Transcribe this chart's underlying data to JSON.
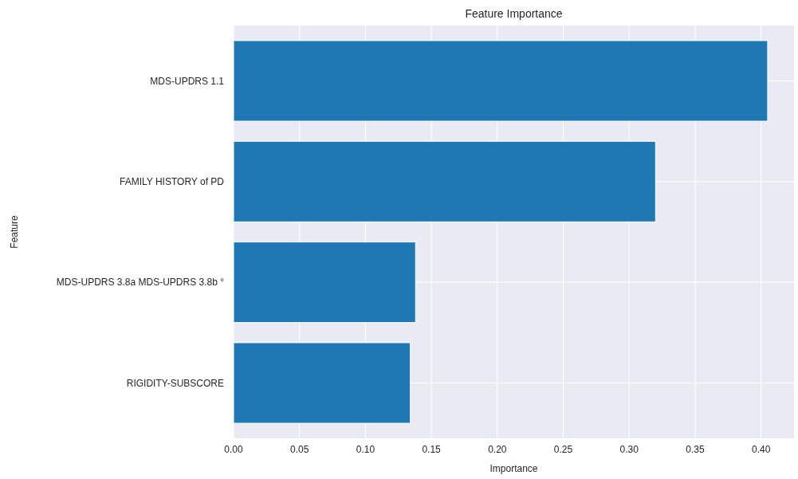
{
  "chart_data": {
    "type": "bar",
    "orientation": "horizontal",
    "title": "Feature Importance",
    "xlabel": "Importance",
    "ylabel": "Feature",
    "categories": [
      "MDS-UPDRS 1.1",
      "FAMILY HISTORY of PD",
      "MDS-UPDRS 3.8a MDS-UPDRS 3.8b °",
      "RIGIDITY-SUBSCORE"
    ],
    "values": [
      0.405,
      0.32,
      0.138,
      0.134
    ],
    "color": "#1f77b4",
    "xlim": [
      0,
      0.425
    ],
    "xticks": [
      {
        "value": 0,
        "label": "0.00"
      },
      {
        "value": 0.05,
        "label": "0.05"
      },
      {
        "value": 0.1,
        "label": "0.10"
      },
      {
        "value": 0.15,
        "label": "0.15"
      },
      {
        "value": 0.2,
        "label": "0.20"
      },
      {
        "value": 0.25,
        "label": "0.25"
      },
      {
        "value": 0.3,
        "label": "0.30"
      },
      {
        "value": 0.35,
        "label": "0.35"
      },
      {
        "value": 0.4,
        "label": "0.40"
      }
    ],
    "grid": true
  }
}
